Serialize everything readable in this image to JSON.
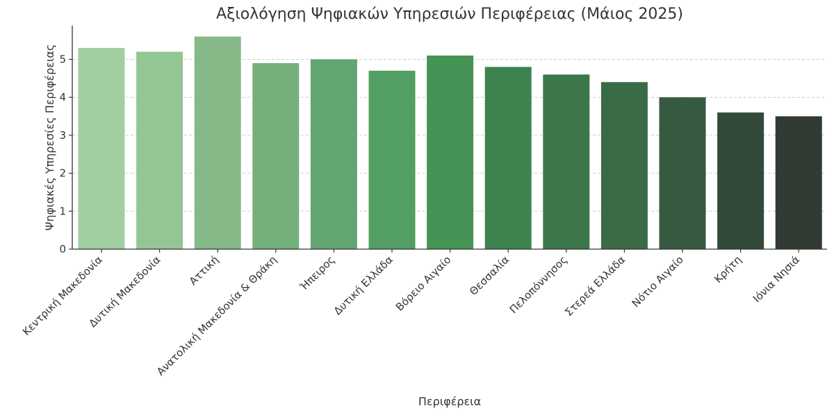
{
  "chart_data": {
    "type": "bar",
    "title": "Αξιολόγηση Ψηφιακών Υπηρεσιών Περιφέρειας (Μάιος 2025)",
    "xlabel": "Περιφέρεια",
    "ylabel": "Ψηφιακές Υπηρεσίες Περιφέρειας",
    "ylim": [
      0,
      5.85
    ],
    "yticks": [
      "0",
      "1",
      "2",
      "3",
      "4",
      "5"
    ],
    "grid": "horizontal-dashed",
    "categories": [
      "Κεντρική Μακεδονία",
      "Δυτική Μακεδονία",
      "Αττική",
      "Ανατολική Μακεδονία & Θράκη",
      "Ήπειρος",
      "Δυτική Ελλάδα",
      "Βόρειο Αιγαίο",
      "Θεσσαλία",
      "Πελοπόννησος",
      "Στερεά Ελλάδα",
      "Νότιο Αιγαίο",
      "Κρήτη",
      "Ιόνια Νησιά"
    ],
    "values": [
      5.3,
      5.2,
      5.6,
      4.9,
      5.0,
      4.7,
      5.1,
      4.8,
      4.6,
      4.4,
      4.0,
      3.6,
      3.5
    ],
    "colors": [
      "#a1cfa1",
      "#94c694",
      "#85b987",
      "#74b07a",
      "#62a472",
      "#529e63",
      "#459456",
      "#3e8250",
      "#3c764b",
      "#3a6b46",
      "#375a40",
      "#33493a",
      "#303a32"
    ]
  }
}
